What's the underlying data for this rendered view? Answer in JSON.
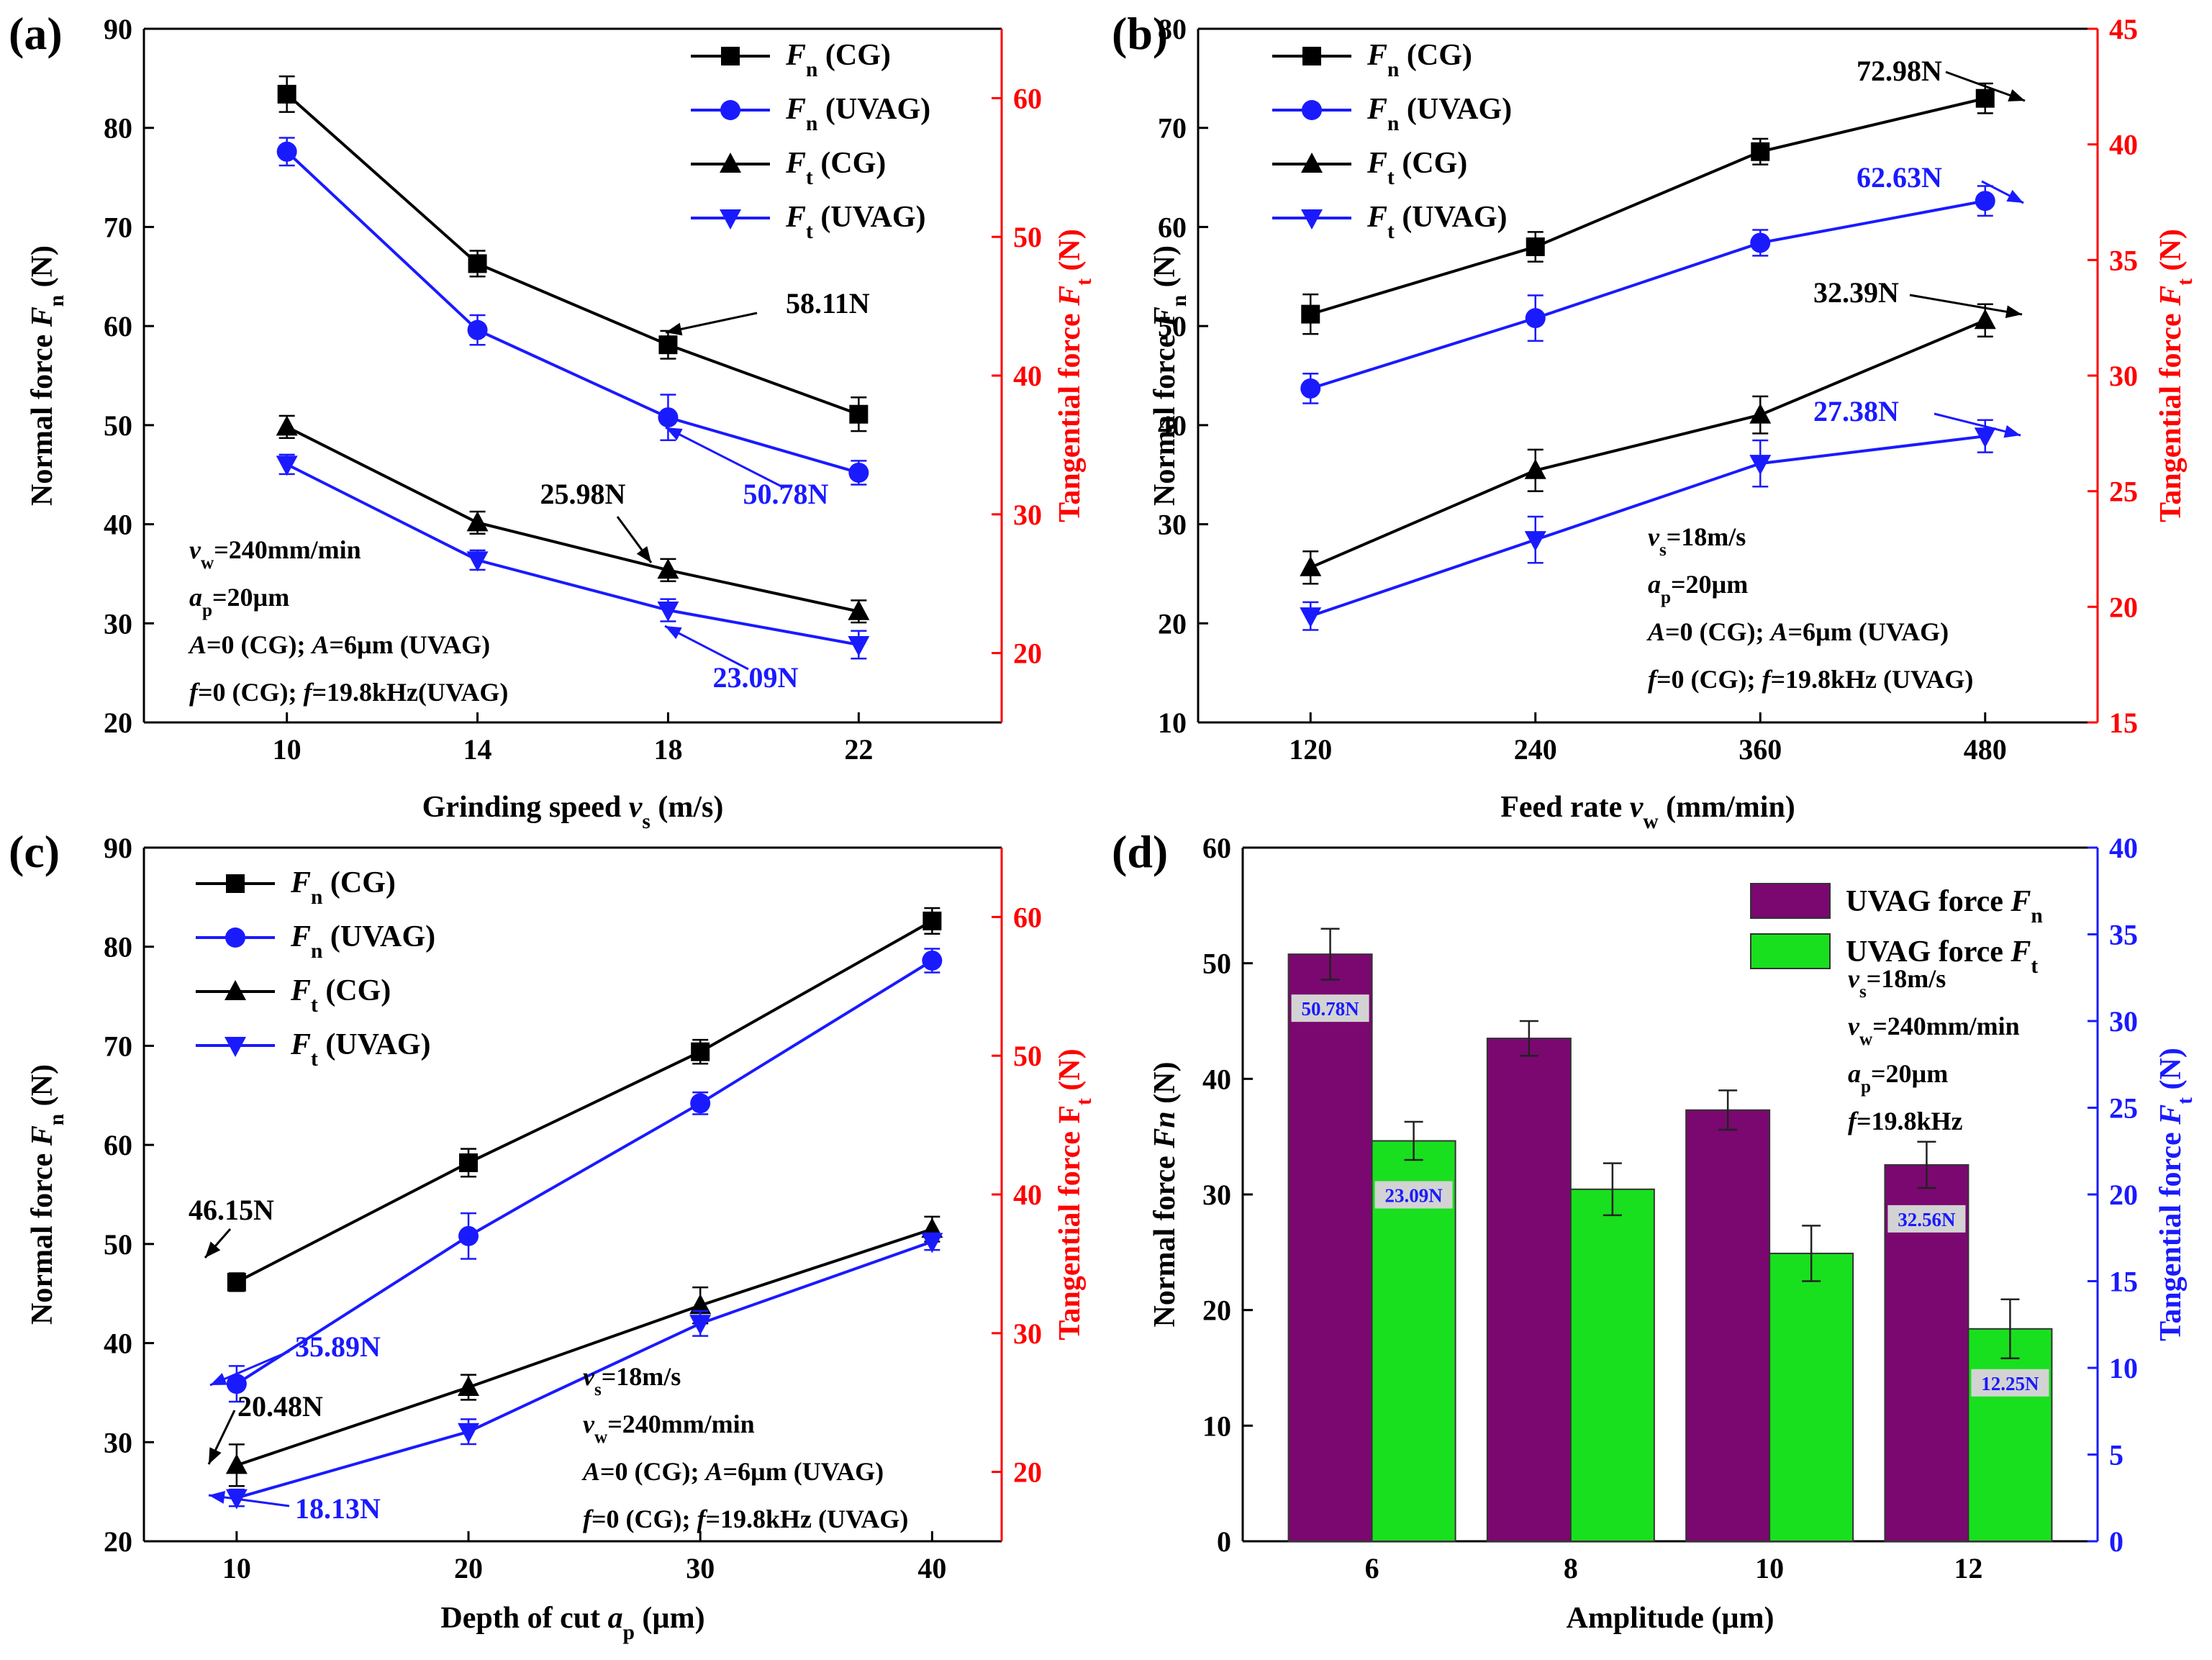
{
  "colors": {
    "black": "#000000",
    "blue": "#1a1aff",
    "red": "#ff0000",
    "purple": "#7a0870",
    "green": "#19e01e",
    "bar_label_bg": "#d3d3d3"
  },
  "chart_data": [
    {
      "type": "line",
      "panel_label": "(a)",
      "xlabel": {
        "main": "Grinding speed ",
        "sym": "v",
        "sub": "s",
        "tail": " (m/s)"
      },
      "ylabel": {
        "main": "Normal force ",
        "sym": "F",
        "sub": "n",
        "tail": " (N)"
      },
      "y2label": {
        "main": "Tangential force ",
        "sym": "F",
        "sub": "t",
        "tail": " (N)"
      },
      "x": [
        10,
        14,
        18,
        22
      ],
      "xlim": [
        7,
        25
      ],
      "xticks": [
        "10",
        "14",
        "18",
        "22"
      ],
      "ylim": [
        20,
        90
      ],
      "yticks": [
        "20",
        "30",
        "40",
        "50",
        "60",
        "70",
        "80",
        "90"
      ],
      "y2lim": [
        15,
        65
      ],
      "y2ticks": [
        "20",
        "30",
        "40",
        "50",
        "60"
      ],
      "series": [
        {
          "name": "Fn (CG)",
          "sym": "F",
          "sub": "n",
          "tag": " (CG)",
          "axis": "left",
          "marker": "square",
          "color": "black",
          "values": [
            83.4,
            66.3,
            58.11,
            51.1
          ],
          "errors": [
            1.8,
            1.3,
            1.4,
            1.7
          ]
        },
        {
          "name": "Fn (UVAG)",
          "sym": "F",
          "sub": "n",
          "tag": " (UVAG)",
          "axis": "left",
          "marker": "circle",
          "color": "blue",
          "values": [
            77.6,
            59.6,
            50.78,
            45.2
          ],
          "errors": [
            1.4,
            1.5,
            2.3,
            1.2
          ]
        },
        {
          "name": "Ft (CG)",
          "sym": "F",
          "sub": "t",
          "tag": " (CG)",
          "axis": "right",
          "marker": "triangle",
          "color": "black",
          "values": [
            36.3,
            29.4,
            25.98,
            23.0
          ],
          "errors": [
            0.8,
            0.8,
            0.8,
            0.8
          ]
        },
        {
          "name": "Ft (UVAG)",
          "sym": "F",
          "sub": "t",
          "tag": " (UVAG)",
          "axis": "right",
          "marker": "triangle-down",
          "color": "blue",
          "values": [
            33.6,
            26.7,
            23.09,
            20.6
          ],
          "errors": [
            0.7,
            0.7,
            0.8,
            1.0
          ]
        }
      ],
      "annotations": [
        {
          "text": "58.11N",
          "color": "black"
        },
        {
          "text": "50.78N",
          "color": "blue"
        },
        {
          "text": "25.98N",
          "color": "black"
        },
        {
          "text": "23.09N",
          "color": "blue"
        }
      ],
      "conditions": [
        {
          "parts": [
            {
              "t": "v",
              "i": 1
            },
            {
              "t": "w",
              "sub": 1
            },
            {
              "t": "=240mm/min"
            }
          ]
        },
        {
          "parts": [
            {
              "t": "a",
              "i": 1
            },
            {
              "t": "p",
              "sub": 1
            },
            {
              "t": "=20µm"
            }
          ]
        },
        {
          "parts": [
            {
              "t": "A",
              "i": 1
            },
            {
              "t": "=0 (CG); "
            },
            {
              "t": "A",
              "i": 1
            },
            {
              "t": "=6µm (UVAG)"
            }
          ]
        },
        {
          "parts": [
            {
              "t": "f",
              "i": 1
            },
            {
              "t": "=0 (CG); "
            },
            {
              "t": "f",
              "i": 1
            },
            {
              "t": "=19.8kHz(UVAG)"
            }
          ]
        }
      ]
    },
    {
      "type": "line",
      "panel_label": "(b)",
      "xlabel": {
        "main": "Feed rate ",
        "sym": "v",
        "sub": "w",
        "tail": " (mm/min)"
      },
      "ylabel": {
        "main": "Normal force ",
        "sym": "F",
        "sub": "n",
        "tail": " (N)"
      },
      "y2label": {
        "main": "Tangential force ",
        "sym": "F",
        "sub": "t",
        "tail": " (N)"
      },
      "x": [
        120,
        240,
        360,
        480
      ],
      "xlim": [
        60,
        540
      ],
      "xticks": [
        "120",
        "240",
        "360",
        "480"
      ],
      "ylim": [
        10,
        80
      ],
      "yticks": [
        "10",
        "20",
        "30",
        "40",
        "50",
        "60",
        "70",
        "80"
      ],
      "y2lim": [
        15,
        45
      ],
      "y2ticks": [
        "15",
        "20",
        "25",
        "30",
        "35",
        "40",
        "45"
      ],
      "series": [
        {
          "name": "Fn (CG)",
          "sym": "F",
          "sub": "n",
          "tag": " (CG)",
          "axis": "left",
          "marker": "square",
          "color": "black",
          "values": [
            51.2,
            58.0,
            67.6,
            72.98
          ],
          "errors": [
            2.0,
            1.5,
            1.3,
            1.5
          ]
        },
        {
          "name": "Fn (UVAG)",
          "sym": "F",
          "sub": "n",
          "tag": " (UVAG)",
          "axis": "left",
          "marker": "circle",
          "color": "blue",
          "values": [
            43.7,
            50.8,
            58.4,
            62.63
          ],
          "errors": [
            1.5,
            2.3,
            1.3,
            1.5
          ]
        },
        {
          "name": "Ft (CG)",
          "sym": "F",
          "sub": "t",
          "tag": " (CG)",
          "axis": "right",
          "marker": "triangle",
          "color": "black",
          "values": [
            21.7,
            25.9,
            28.3,
            32.39
          ],
          "errors": [
            0.7,
            0.9,
            0.8,
            0.7
          ]
        },
        {
          "name": "Ft (UVAG)",
          "sym": "F",
          "sub": "t",
          "tag": " (UVAG)",
          "axis": "right",
          "marker": "triangle-down",
          "color": "blue",
          "values": [
            19.6,
            22.9,
            26.2,
            27.38
          ],
          "errors": [
            0.6,
            1.0,
            1.0,
            0.7
          ]
        }
      ],
      "annotations": [
        {
          "text": "72.98N",
          "color": "black"
        },
        {
          "text": "62.63N",
          "color": "blue"
        },
        {
          "text": "32.39N",
          "color": "black"
        },
        {
          "text": "27.38N",
          "color": "blue"
        }
      ],
      "conditions": [
        {
          "parts": [
            {
              "t": "v",
              "i": 1
            },
            {
              "t": "s",
              "sub": 1
            },
            {
              "t": "=18m/s"
            }
          ]
        },
        {
          "parts": [
            {
              "t": "a",
              "i": 1
            },
            {
              "t": "p",
              "sub": 1
            },
            {
              "t": "=20µm"
            }
          ]
        },
        {
          "parts": [
            {
              "t": "A",
              "i": 1
            },
            {
              "t": "=0 (CG); "
            },
            {
              "t": "A",
              "i": 1
            },
            {
              "t": "=6µm (UVAG)"
            }
          ]
        },
        {
          "parts": [
            {
              "t": "f",
              "i": 1
            },
            {
              "t": "=0 (CG); "
            },
            {
              "t": "f",
              "i": 1
            },
            {
              "t": "=19.8kHz (UVAG)"
            }
          ]
        }
      ]
    },
    {
      "type": "line",
      "panel_label": "(c)",
      "xlabel": {
        "main": "Depth of cut ",
        "sym": "a",
        "sub": "p",
        "tail": " (µm)"
      },
      "ylabel": {
        "main": "Normal force ",
        "sym": "F",
        "sub": "n",
        "tail": " (N)"
      },
      "y2label": {
        "main": "Tangential force F",
        "sym": "",
        "sub": "t",
        "tail": " (N)"
      },
      "x": [
        10,
        20,
        30,
        40
      ],
      "xlim": [
        6,
        43
      ],
      "xticks": [
        "10",
        "20",
        "30",
        "40"
      ],
      "ylim": [
        20,
        90
      ],
      "yticks": [
        "20",
        "30",
        "40",
        "50",
        "60",
        "70",
        "80",
        "90"
      ],
      "y2lim": [
        15,
        65
      ],
      "y2ticks": [
        "20",
        "30",
        "40",
        "50",
        "60"
      ],
      "series": [
        {
          "name": "Fn (CG)",
          "sym": "F",
          "sub": "n",
          "tag": " (CG)",
          "axis": "left",
          "marker": "square",
          "color": "black",
          "values": [
            46.15,
            58.2,
            69.4,
            82.6
          ],
          "errors": [
            0.9,
            1.4,
            1.2,
            1.3
          ]
        },
        {
          "name": "Fn (UVAG)",
          "sym": "F",
          "sub": "n",
          "tag": " (UVAG)",
          "axis": "left",
          "marker": "circle",
          "color": "blue",
          "values": [
            35.89,
            50.8,
            64.2,
            78.6
          ],
          "errors": [
            1.8,
            2.3,
            1.1,
            1.2
          ]
        },
        {
          "name": "Ft (CG)",
          "sym": "F",
          "sub": "t",
          "tag": " (CG)",
          "axis": "right",
          "marker": "triangle",
          "color": "black",
          "values": [
            20.48,
            26.1,
            32.0,
            37.5
          ],
          "errors": [
            1.5,
            0.9,
            1.3,
            0.9
          ]
        },
        {
          "name": "Ft (UVAG)",
          "sym": "F",
          "sub": "t",
          "tag": " (UVAG)",
          "axis": "right",
          "marker": "triangle-down",
          "color": "blue",
          "values": [
            18.13,
            22.9,
            30.7,
            36.6
          ],
          "errors": [
            0.6,
            0.9,
            0.9,
            0.6
          ]
        }
      ],
      "annotations": [
        {
          "text": "46.15N",
          "color": "black"
        },
        {
          "text": "35.89N",
          "color": "blue"
        },
        {
          "text": "20.48N",
          "color": "black"
        },
        {
          "text": "18.13N",
          "color": "blue"
        }
      ],
      "conditions": [
        {
          "parts": [
            {
              "t": "v",
              "i": 1
            },
            {
              "t": "s",
              "sub": 1
            },
            {
              "t": "=18m/s"
            }
          ]
        },
        {
          "parts": [
            {
              "t": "v",
              "i": 1
            },
            {
              "t": "w",
              "sub": 1
            },
            {
              "t": "=240mm/min"
            }
          ]
        },
        {
          "parts": [
            {
              "t": "A",
              "i": 1
            },
            {
              "t": "=0 (CG); "
            },
            {
              "t": "A",
              "i": 1
            },
            {
              "t": "=6µm (UVAG)"
            }
          ]
        },
        {
          "parts": [
            {
              "t": "f",
              "i": 1
            },
            {
              "t": "=0 (CG); "
            },
            {
              "t": "f",
              "i": 1
            },
            {
              "t": "=19.8kHz (UVAG)"
            }
          ]
        }
      ]
    },
    {
      "type": "bar",
      "panel_label": "(d)",
      "xlabel": {
        "main": "Amplitude (µm)",
        "sym": "",
        "sub": "",
        "tail": ""
      },
      "ylabel": {
        "main": "Normal force ",
        "sym": "Fn",
        "sub": "",
        "tail": " (N)"
      },
      "y2label": {
        "main": "Tangential force ",
        "sym": "F",
        "sub": "t",
        "tail": " (N)"
      },
      "categories": [
        "6",
        "8",
        "10",
        "12"
      ],
      "ylim": [
        0,
        60
      ],
      "yticks": [
        "0",
        "10",
        "20",
        "30",
        "40",
        "50",
        "60"
      ],
      "y2lim": [
        0,
        40
      ],
      "y2ticks": [
        "0",
        "5",
        "10",
        "15",
        "20",
        "25",
        "30",
        "35",
        "40"
      ],
      "series": [
        {
          "name": "UVAG force Fn",
          "label": "UVAG force ",
          "sym": "F",
          "sub": "n",
          "axis": "left",
          "color": "purple",
          "values": [
            50.78,
            43.5,
            37.3,
            32.56
          ],
          "errors": [
            2.2,
            1.5,
            1.7,
            2.0
          ]
        },
        {
          "name": "UVAG force Ft",
          "label": "UVAG force ",
          "sym": "F",
          "sub": "t",
          "axis": "right",
          "color": "green",
          "values": [
            23.09,
            20.3,
            16.6,
            12.25
          ],
          "errors": [
            1.1,
            1.5,
            1.6,
            1.7
          ]
        }
      ],
      "bar_labels": [
        {
          "text": "50.78N",
          "series": 0,
          "index": 0
        },
        {
          "text": "23.09N",
          "series": 1,
          "index": 0
        },
        {
          "text": "32.56N",
          "series": 0,
          "index": 3
        },
        {
          "text": "12.25N",
          "series": 1,
          "index": 3
        }
      ],
      "conditions": [
        {
          "parts": [
            {
              "t": "v",
              "i": 1
            },
            {
              "t": "s",
              "sub": 1
            },
            {
              "t": "=18m/s"
            }
          ]
        },
        {
          "parts": [
            {
              "t": "v",
              "i": 1
            },
            {
              "t": "w",
              "sub": 1
            },
            {
              "t": "=240mm/min"
            }
          ]
        },
        {
          "parts": [
            {
              "t": "a",
              "i": 1
            },
            {
              "t": "p",
              "sub": 1
            },
            {
              "t": "=20µm"
            }
          ]
        },
        {
          "parts": [
            {
              "t": "f",
              "i": 1
            },
            {
              "t": "=19.8kHz"
            }
          ]
        }
      ]
    }
  ]
}
